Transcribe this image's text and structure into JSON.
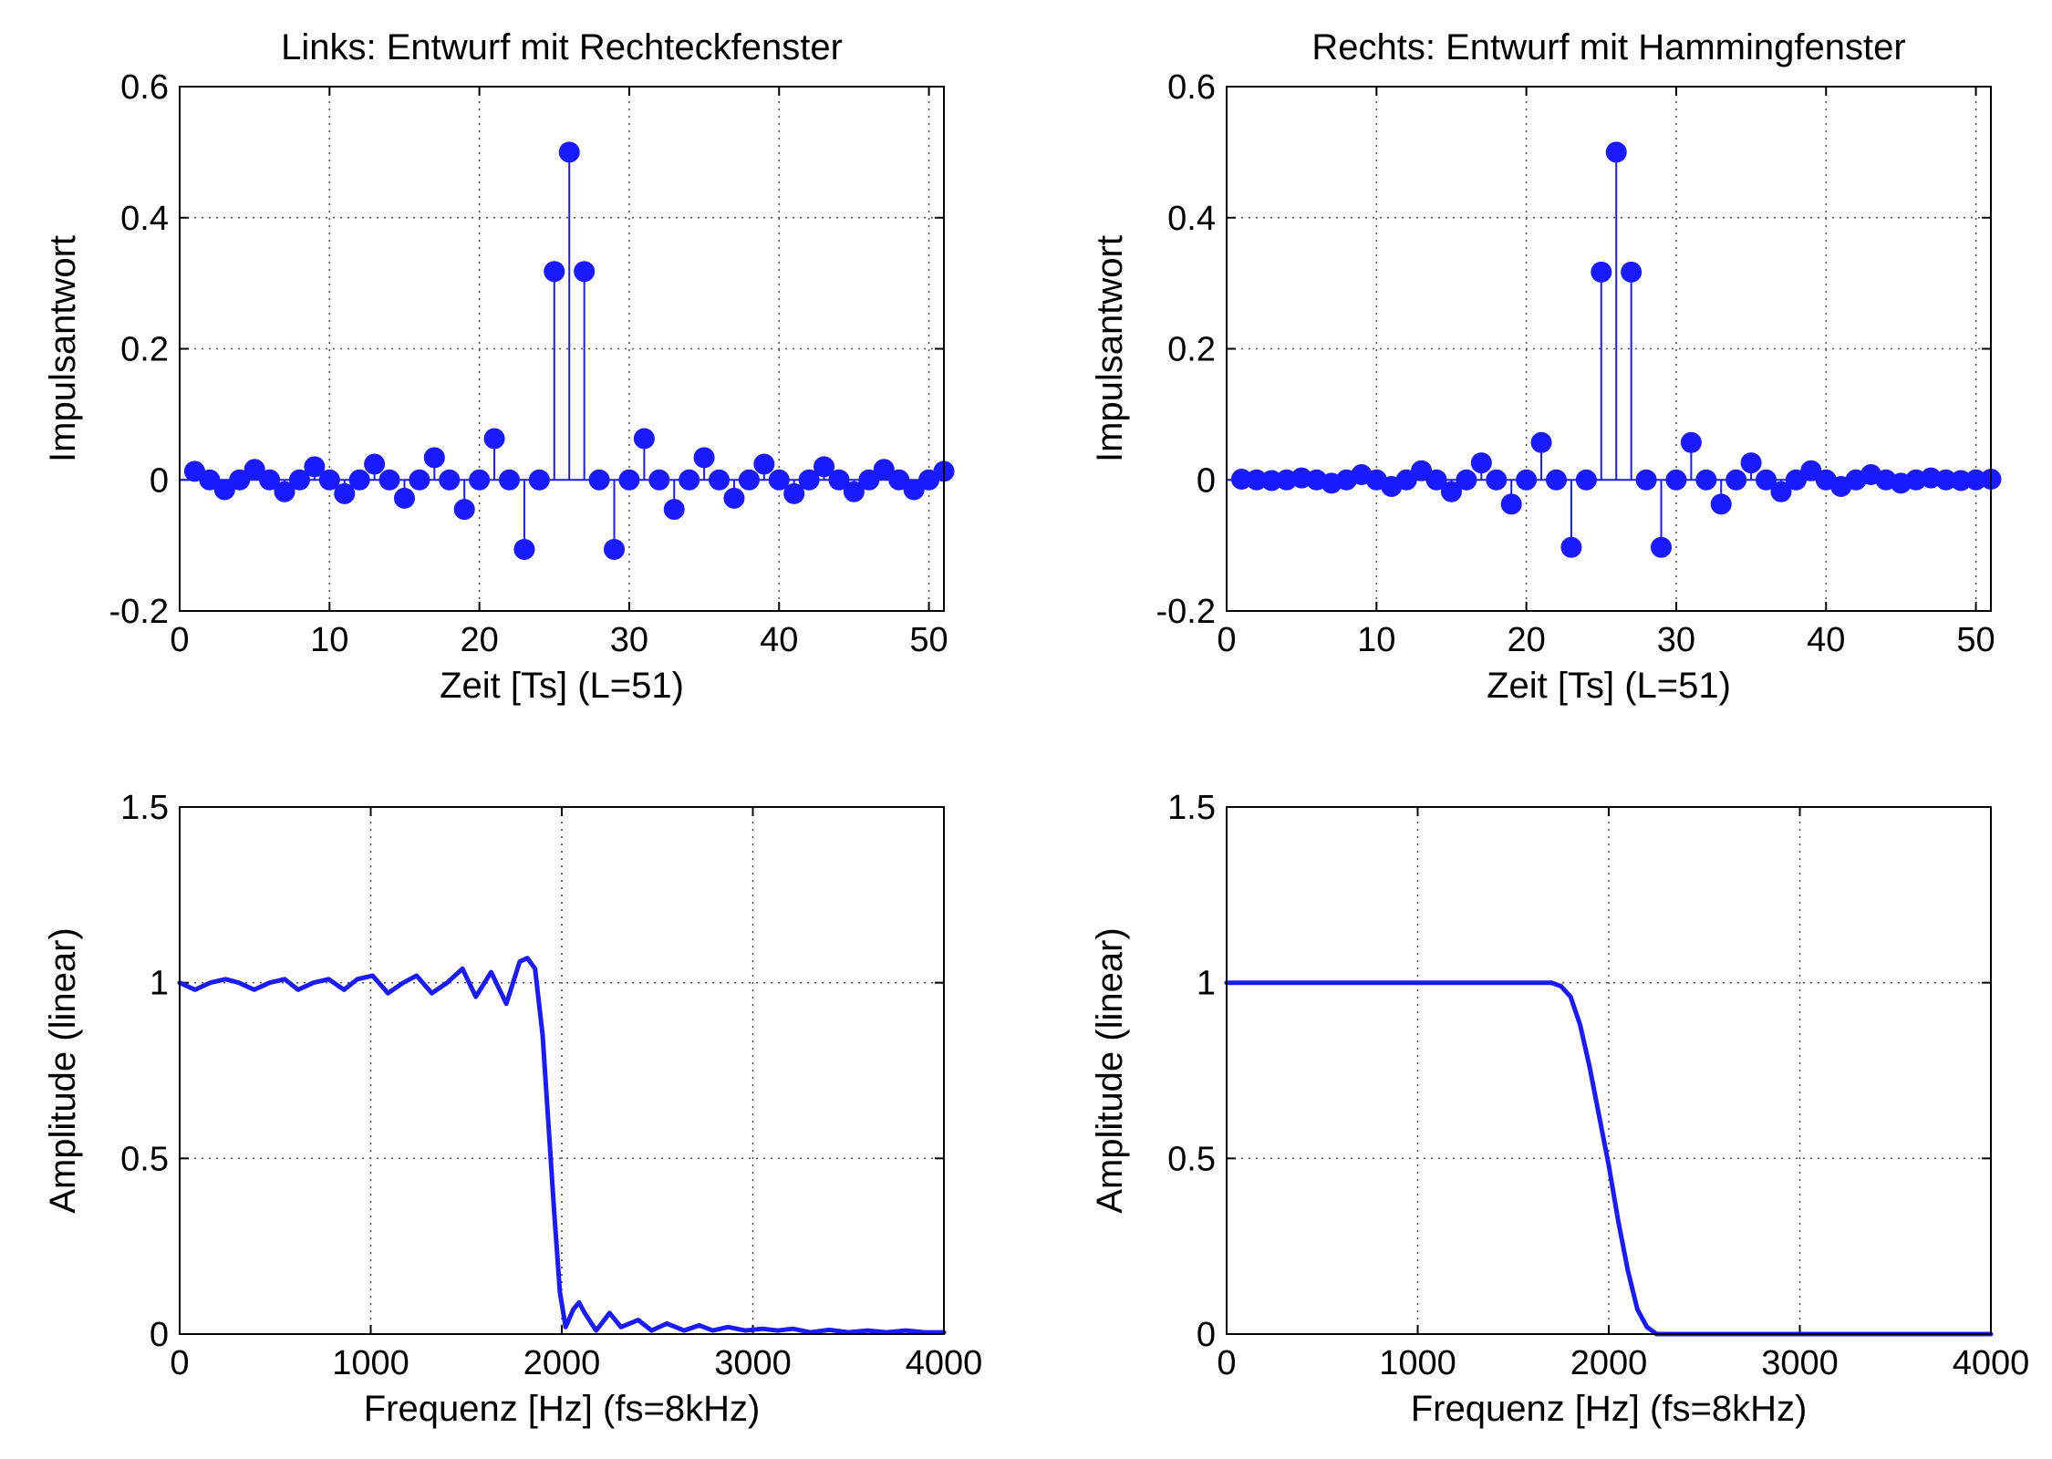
{
  "page": {
    "background": "#ffffff",
    "line_color": "#1a1aff"
  },
  "chart_data": [
    {
      "id": "tl",
      "type": "stem",
      "title": "Links: Entwurf mit Rechteckfenster",
      "xlabel": "Zeit [Ts] (L=51)",
      "ylabel": "Impulsantwort",
      "xlim": [
        0,
        51
      ],
      "ylim": [
        -0.2,
        0.6
      ],
      "xticks": [
        0,
        10,
        20,
        30,
        40,
        50
      ],
      "xtick_labels": [
        "0",
        "10",
        "20",
        "30",
        "40",
        "50"
      ],
      "yticks": [
        -0.2,
        0,
        0.2,
        0.4,
        0.6
      ],
      "ytick_labels": [
        "-0.2",
        "0",
        "0.2",
        "0.4",
        "0.6"
      ],
      "grid": true,
      "series": [
        {
          "color": "#1a1aff",
          "x": [
            1,
            2,
            3,
            4,
            5,
            6,
            7,
            8,
            9,
            10,
            11,
            12,
            13,
            14,
            15,
            16,
            17,
            18,
            19,
            20,
            21,
            22,
            23,
            24,
            25,
            26,
            27,
            28,
            29,
            30,
            31,
            32,
            33,
            34,
            35,
            36,
            37,
            38,
            39,
            40,
            41,
            42,
            43,
            44,
            45,
            46,
            47,
            48,
            49,
            50,
            51
          ],
          "y": [
            0.013,
            0,
            -0.015,
            0,
            0.016,
            0,
            -0.018,
            0,
            0.02,
            0,
            -0.021,
            0,
            0.024,
            0,
            -0.028,
            0,
            0.034,
            0,
            -0.045,
            0,
            0.063,
            0,
            -0.106,
            0,
            0.318,
            0.5,
            0.318,
            0,
            -0.106,
            0,
            0.063,
            0,
            -0.045,
            0,
            0.034,
            0,
            -0.028,
            0,
            0.024,
            0,
            -0.021,
            0,
            0.02,
            0,
            -0.018,
            0,
            0.016,
            0,
            -0.015,
            0,
            0.013
          ]
        }
      ]
    },
    {
      "id": "tr",
      "type": "stem",
      "title": "Rechts: Entwurf mit Hammingfenster",
      "xlabel": "Zeit [Ts] (L=51)",
      "ylabel": "Impulsantwort",
      "xlim": [
        0,
        51
      ],
      "ylim": [
        -0.2,
        0.6
      ],
      "xticks": [
        0,
        10,
        20,
        30,
        40,
        50
      ],
      "xtick_labels": [
        "0",
        "10",
        "20",
        "30",
        "40",
        "50"
      ],
      "yticks": [
        -0.2,
        0,
        0.2,
        0.4,
        0.6
      ],
      "ytick_labels": [
        "-0.2",
        "0",
        "0.2",
        "0.4",
        "0.6"
      ],
      "grid": true,
      "series": [
        {
          "color": "#1a1aff",
          "x": [
            1,
            2,
            3,
            4,
            5,
            6,
            7,
            8,
            9,
            10,
            11,
            12,
            13,
            14,
            15,
            16,
            17,
            18,
            19,
            20,
            21,
            22,
            23,
            24,
            25,
            26,
            27,
            28,
            29,
            30,
            31,
            32,
            33,
            34,
            35,
            36,
            37,
            38,
            39,
            40,
            41,
            42,
            43,
            44,
            45,
            46,
            47,
            48,
            49,
            50,
            51
          ],
          "y": [
            0.001,
            0,
            -0.001,
            0,
            0.003,
            0,
            -0.005,
            0,
            0.008,
            0,
            -0.01,
            0,
            0.014,
            0,
            -0.018,
            0,
            0.026,
            0,
            -0.037,
            0,
            0.057,
            0,
            -0.103,
            0,
            0.317,
            0.5,
            0.317,
            0,
            -0.103,
            0,
            0.057,
            0,
            -0.037,
            0,
            0.026,
            0,
            -0.018,
            0,
            0.014,
            0,
            -0.01,
            0,
            0.008,
            0,
            -0.005,
            0,
            0.003,
            0,
            -0.001,
            0,
            0.001
          ]
        }
      ]
    },
    {
      "id": "bl",
      "type": "line",
      "title": "",
      "xlabel": "Frequenz [Hz] (fs=8kHz)",
      "ylabel": "Amplitude (linear)",
      "xlim": [
        0,
        4000
      ],
      "ylim": [
        0,
        1.5
      ],
      "xticks": [
        0,
        1000,
        2000,
        3000,
        4000
      ],
      "xtick_labels": [
        "0",
        "1000",
        "2000",
        "3000",
        "4000"
      ],
      "yticks": [
        0,
        0.5,
        1,
        1.5
      ],
      "ytick_labels": [
        "0",
        "0.5",
        "1",
        "1.5"
      ],
      "grid": true,
      "series": [
        {
          "color": "#1a1aff",
          "x": [
            0,
            80,
            160,
            240,
            310,
            390,
            470,
            550,
            620,
            700,
            780,
            860,
            930,
            1010,
            1090,
            1170,
            1240,
            1320,
            1400,
            1480,
            1550,
            1630,
            1710,
            1780,
            1820,
            1860,
            1900,
            1930,
            1960,
            1990,
            2020,
            2060,
            2090,
            2120,
            2180,
            2250,
            2310,
            2400,
            2470,
            2550,
            2640,
            2720,
            2790,
            2870,
            2960,
            3050,
            3130,
            3210,
            3300,
            3400,
            3500,
            3600,
            3700,
            3800,
            3900,
            4000
          ],
          "y": [
            1.0,
            0.98,
            1.0,
            1.01,
            1.0,
            0.98,
            1.0,
            1.01,
            0.98,
            1.0,
            1.01,
            0.98,
            1.01,
            1.02,
            0.97,
            1.0,
            1.02,
            0.97,
            1.0,
            1.04,
            0.96,
            1.03,
            0.94,
            1.06,
            1.07,
            1.04,
            0.85,
            0.6,
            0.35,
            0.12,
            0.02,
            0.07,
            0.09,
            0.06,
            0.01,
            0.06,
            0.02,
            0.04,
            0.01,
            0.03,
            0.01,
            0.025,
            0.01,
            0.02,
            0.01,
            0.015,
            0.01,
            0.015,
            0.005,
            0.012,
            0.005,
            0.01,
            0.005,
            0.01,
            0.005,
            0.005
          ]
        }
      ]
    },
    {
      "id": "br",
      "type": "line",
      "title": "",
      "xlabel": "Frequenz [Hz] (fs=8kHz)",
      "ylabel": "Amplitude (linear)",
      "xlim": [
        0,
        4000
      ],
      "ylim": [
        0,
        1.5
      ],
      "xticks": [
        0,
        1000,
        2000,
        3000,
        4000
      ],
      "xtick_labels": [
        "0",
        "1000",
        "2000",
        "3000",
        "4000"
      ],
      "yticks": [
        0,
        0.5,
        1,
        1.5
      ],
      "ytick_labels": [
        "0",
        "0.5",
        "1",
        "1.5"
      ],
      "grid": true,
      "series": [
        {
          "color": "#1a1aff",
          "x": [
            0,
            200,
            400,
            600,
            800,
            1000,
            1200,
            1400,
            1600,
            1700,
            1750,
            1800,
            1850,
            1900,
            1950,
            2000,
            2050,
            2100,
            2150,
            2200,
            2250,
            2300,
            2500,
            3000,
            3500,
            4000
          ],
          "y": [
            1.0,
            1.0,
            1.0,
            1.0,
            1.0,
            1.0,
            1.0,
            1.0,
            1.0,
            1.0,
            0.99,
            0.96,
            0.88,
            0.76,
            0.62,
            0.48,
            0.32,
            0.18,
            0.07,
            0.02,
            0.0,
            0.0,
            0.0,
            0.0,
            0.0,
            0.0
          ]
        }
      ]
    }
  ]
}
